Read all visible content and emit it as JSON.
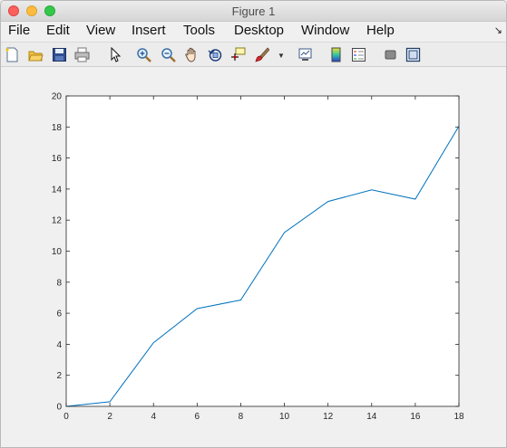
{
  "window": {
    "title": "Figure 1"
  },
  "menubar": {
    "items": [
      "File",
      "Edit",
      "View",
      "Insert",
      "Tools",
      "Desktop",
      "Window",
      "Help"
    ]
  },
  "toolbar": {
    "icons": [
      "new-figure-icon",
      "open-file-icon",
      "save-icon",
      "print-icon",
      "pointer-icon",
      "zoom-in-icon",
      "zoom-out-icon",
      "pan-hand-icon",
      "rotate-3d-icon",
      "data-cursor-icon",
      "brush-icon",
      "dropdown-arrow-icon",
      "link-plot-icon",
      "colorbar-icon",
      "legend-icon",
      "hide-plot-tools-icon",
      "show-plot-tools-icon"
    ]
  },
  "colors": {
    "line": "#0072bd",
    "axes_background": "#ffffff",
    "figure_background": "#f0f0f0"
  },
  "chart_data": {
    "type": "line",
    "title": "",
    "xlabel": "",
    "ylabel": "",
    "x": [
      0,
      2,
      4,
      6,
      8,
      10,
      12,
      14,
      16,
      18
    ],
    "series": [
      {
        "values": [
          0,
          0.3,
          4.1,
          6.3,
          6.85,
          11.2,
          13.2,
          13.95,
          13.35,
          18.05
        ]
      }
    ],
    "xlim": [
      0,
      18
    ],
    "ylim": [
      0,
      20
    ],
    "xticks": [
      "0",
      "2",
      "4",
      "6",
      "8",
      "10",
      "12",
      "14",
      "16",
      "18"
    ],
    "yticks": [
      "0",
      "2",
      "4",
      "6",
      "8",
      "10",
      "12",
      "14",
      "16",
      "18",
      "20"
    ],
    "grid": false
  }
}
